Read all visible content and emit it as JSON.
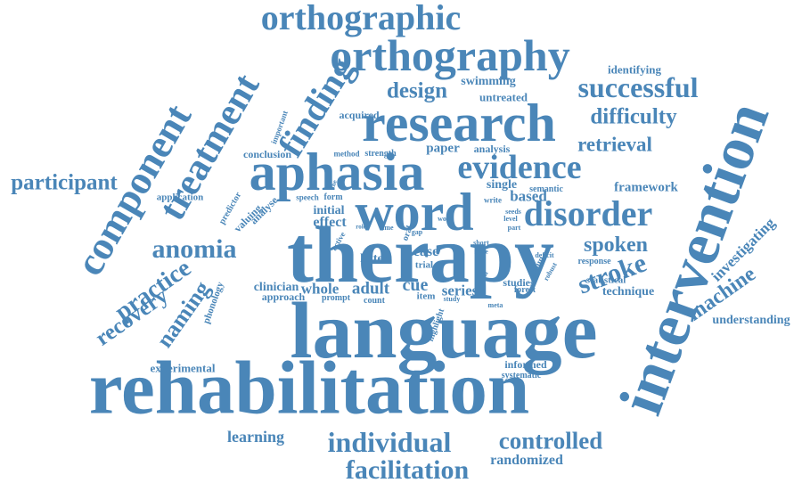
{
  "color": "#4a86b8",
  "words": [
    "orthographic",
    "orthography",
    "research",
    "finding",
    "design",
    "acquired",
    "swimming",
    "untreated",
    "identifying",
    "successful",
    "difficulty",
    "retrieval",
    "evidence",
    "aphasia",
    "treatment",
    "component",
    "participant",
    "word",
    "disorder",
    "therapy",
    "anomia",
    "practice",
    "recovery",
    "naming",
    "language",
    "rehabilitation",
    "intervention",
    "investigating",
    "machine",
    "understanding",
    "spoken",
    "stroke",
    "technique",
    "framework",
    "semantic",
    "based",
    "single",
    "write",
    "paper",
    "analysis",
    "conclusion",
    "method",
    "strength",
    "important",
    "application",
    "predictor",
    "valuing",
    "analyse",
    "initial",
    "effect",
    "speech",
    "form",
    "letter",
    "case",
    "trial",
    "cue",
    "series",
    "adult",
    "whole",
    "clinician",
    "approach",
    "prompt",
    "count",
    "item",
    "studies",
    "group",
    "forest",
    "statistical",
    "response",
    "phonology",
    "highlight",
    "experimental",
    "informed",
    "systematic",
    "learning",
    "individual",
    "controlled",
    "randomized",
    "facilitation",
    "oral",
    "time",
    "active",
    "deficit",
    "robust",
    "short",
    "useful",
    "level",
    "part",
    "meta",
    "study",
    "word",
    "gap",
    "seeds",
    "role",
    "the",
    "more"
  ]
}
